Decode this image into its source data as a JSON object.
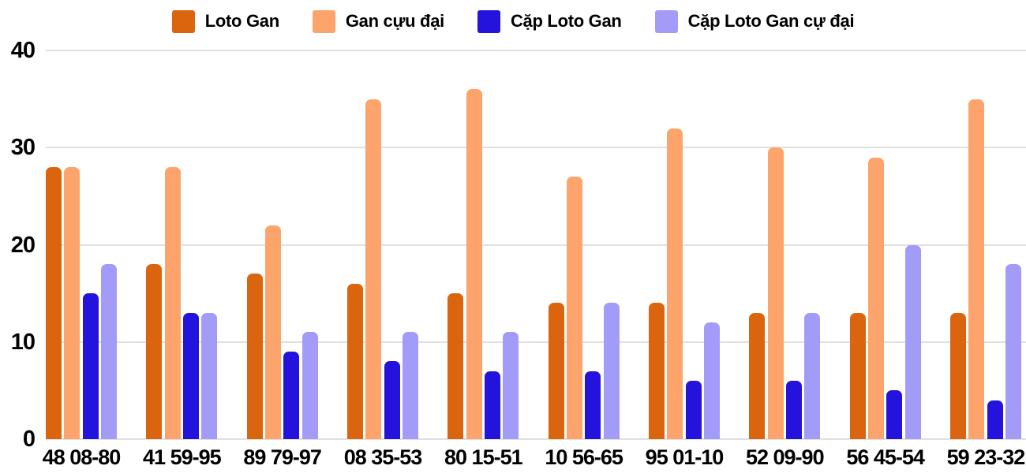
{
  "chart_data": {
    "type": "bar",
    "title": "",
    "categories": [
      "48 08-80",
      "41 59-95",
      "89 79-97",
      "08 35-53",
      "80 15-51",
      "10 56-65",
      "95 01-10",
      "52 09-90",
      "56 45-54",
      "59 23-32"
    ],
    "series": [
      {
        "name": "Loto Gan",
        "key": "loto-gan",
        "color": "#db650f",
        "values": [
          28,
          18,
          17,
          16,
          15,
          14,
          14,
          13,
          13,
          13
        ]
      },
      {
        "name": "Gan cựu đại",
        "key": "gan-cuu-dai",
        "color": "#fca46b",
        "values": [
          28,
          28,
          22,
          35,
          36,
          27,
          32,
          30,
          29,
          35
        ]
      },
      {
        "name": "Cặp Loto Gan",
        "key": "cap-loto-gan",
        "color": "#2412dd",
        "values": [
          15,
          13,
          9,
          8,
          7,
          7,
          6,
          6,
          5,
          4
        ]
      },
      {
        "name": "Cặp Loto Gan cự đại",
        "key": "cap-loto-gan-cu-dai",
        "color": "#a39bf8",
        "values": [
          18,
          13,
          11,
          11,
          11,
          14,
          12,
          13,
          20,
          18
        ]
      }
    ],
    "xlabel": "",
    "ylabel": "",
    "y_ticks": [
      0,
      10,
      20,
      30,
      40
    ],
    "ylim": [
      0,
      40
    ],
    "grid": true,
    "legend_position": "top",
    "gridline_color": "#e0e0e0",
    "text_color": "#000000"
  }
}
